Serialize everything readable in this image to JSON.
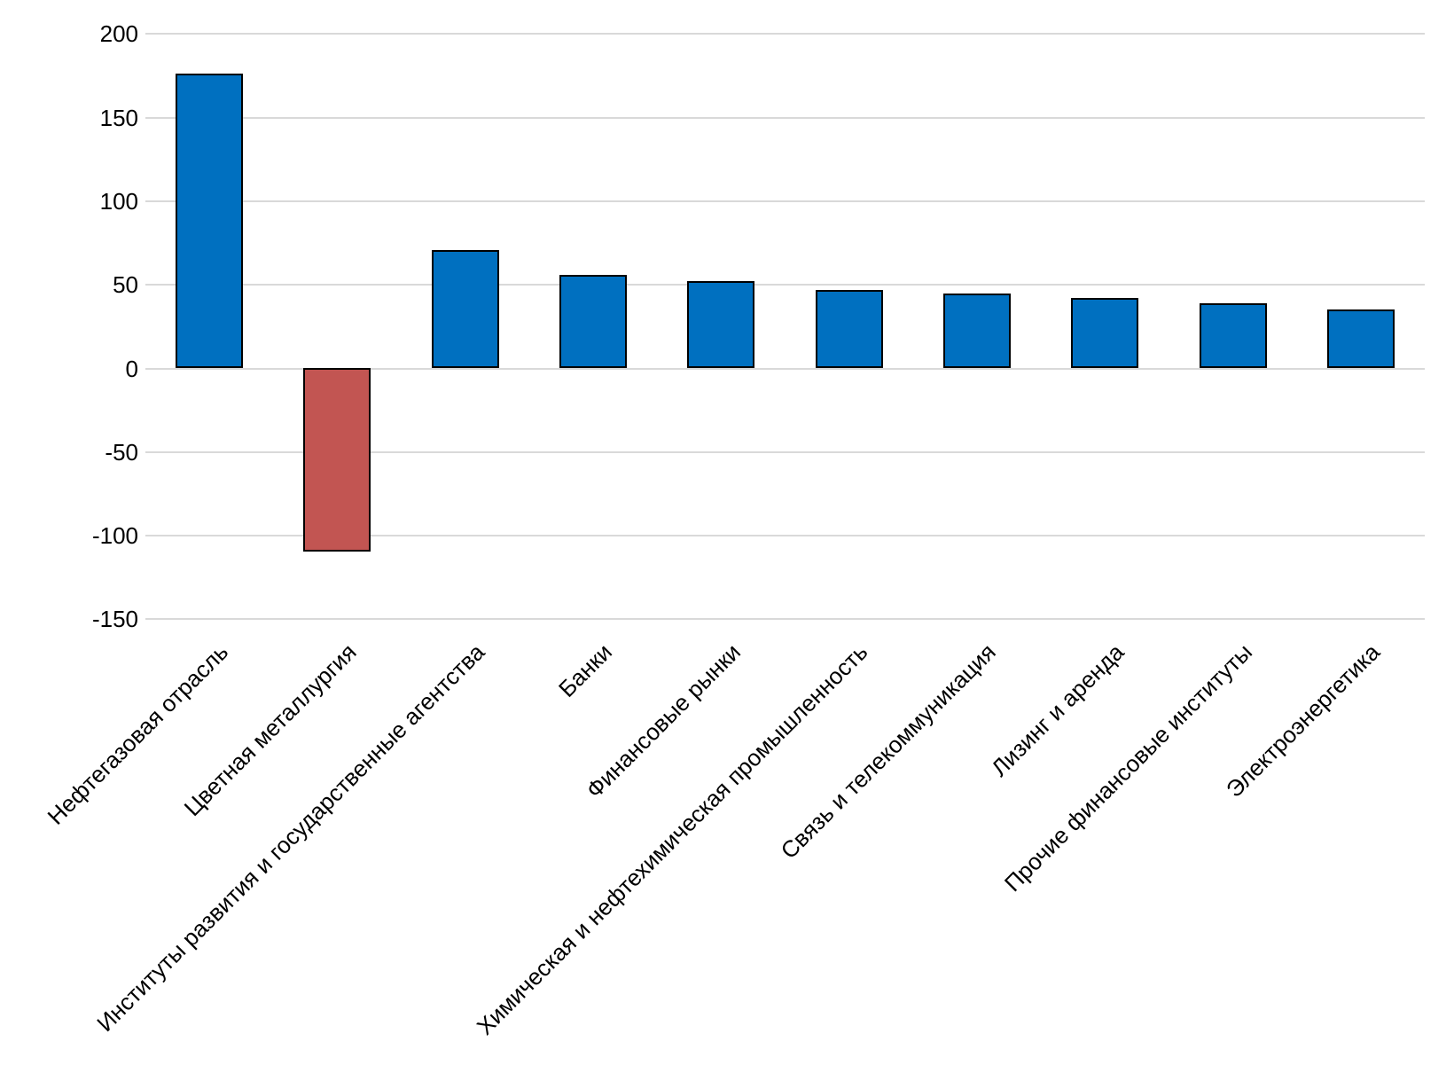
{
  "chart_data": {
    "type": "bar",
    "title": "",
    "xlabel": "",
    "ylabel": "",
    "categories": [
      "Нефтегазовая отрасль",
      "Цветная металлургия",
      "Институты развития и государственные агентства",
      "Банки",
      "Финансовые рынки",
      "Химическая и нефтехимическая промышленность",
      "Связь и телекоммуникация",
      "Лизинг и аренда",
      "Прочие финансовые институты",
      "Электроэнергетика"
    ],
    "values": [
      176,
      -110,
      71,
      56,
      52,
      47,
      45,
      42,
      39,
      35
    ],
    "ylim": [
      -150,
      200
    ],
    "yticks": [
      200,
      150,
      100,
      50,
      0,
      -50,
      -100,
      -150
    ],
    "grid": true,
    "legend": false,
    "x_label_rotation_deg": 45,
    "colors": {
      "bar_positive": "#0070C0",
      "bar_negative": "#C25552",
      "bar_border": "#000000",
      "gridline": "#D9D9D9",
      "background": "#FFFFFF",
      "text": "#000000"
    }
  }
}
